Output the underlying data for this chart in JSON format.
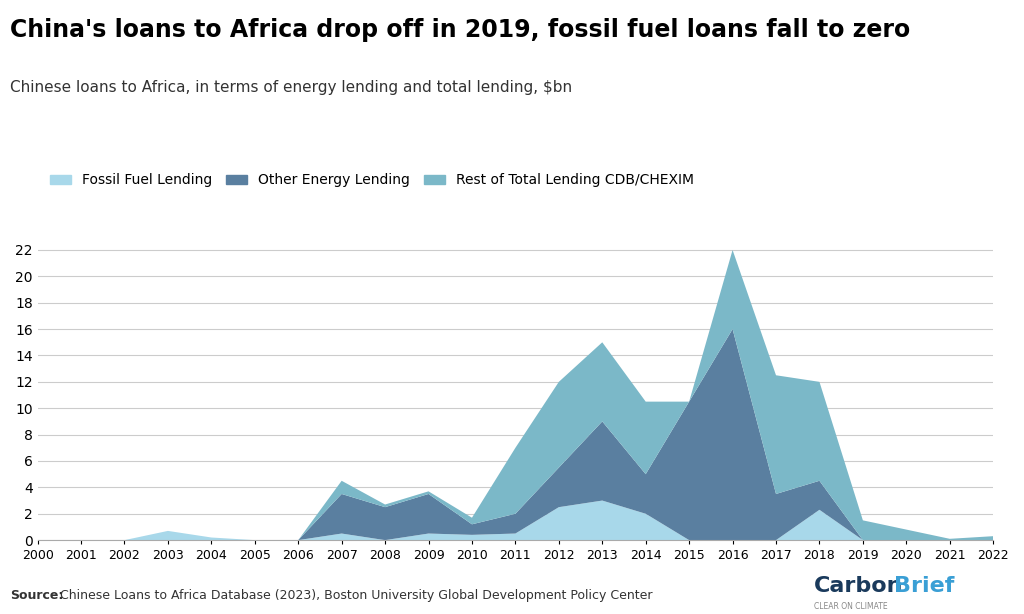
{
  "title": "China's loans to Africa drop off in 2019, fossil fuel loans fall to zero",
  "subtitle": "Chinese loans to Africa, in terms of energy lending and total lending, $bn",
  "source_bold": "Source:",
  "source_rest": " Chinese Loans to Africa Database (2023), Boston University Global Development Policy Center",
  "years": [
    2000,
    2001,
    2002,
    2003,
    2004,
    2005,
    2006,
    2007,
    2008,
    2009,
    2010,
    2011,
    2012,
    2013,
    2014,
    2015,
    2016,
    2017,
    2018,
    2019,
    2020,
    2021,
    2022
  ],
  "fossil_fuel": [
    0.0,
    0.0,
    0.0,
    0.7,
    0.2,
    0.0,
    0.0,
    0.5,
    0.0,
    0.5,
    0.4,
    0.5,
    2.5,
    3.0,
    2.0,
    0.0,
    0.0,
    0.0,
    2.3,
    0.0,
    0.0,
    0.0,
    0.0
  ],
  "other_energy": [
    0.0,
    0.0,
    0.0,
    0.0,
    0.0,
    0.0,
    0.0,
    3.0,
    2.5,
    3.0,
    0.8,
    1.5,
    3.0,
    6.0,
    3.0,
    10.5,
    16.0,
    3.5,
    2.2,
    0.0,
    0.0,
    0.0,
    0.0
  ],
  "rest_total": [
    0.0,
    0.0,
    0.0,
    0.0,
    0.0,
    0.0,
    0.0,
    1.0,
    0.2,
    0.2,
    0.5,
    5.0,
    6.5,
    6.0,
    5.5,
    0.0,
    6.0,
    9.0,
    7.5,
    1.5,
    0.8,
    0.1,
    0.3
  ],
  "color_fossil": "#a8d8ea",
  "color_other_energy": "#5a7fa0",
  "color_rest": "#7bb8c8",
  "ylim": [
    0,
    23
  ],
  "yticks": [
    0,
    2,
    4,
    6,
    8,
    10,
    12,
    14,
    16,
    18,
    20,
    22
  ],
  "legend_labels": [
    "Fossil Fuel Lending",
    "Other Energy Lending",
    "Rest of Total Lending CDB/CHEXIM"
  ],
  "background_color": "#ffffff",
  "grid_color": "#cccccc"
}
